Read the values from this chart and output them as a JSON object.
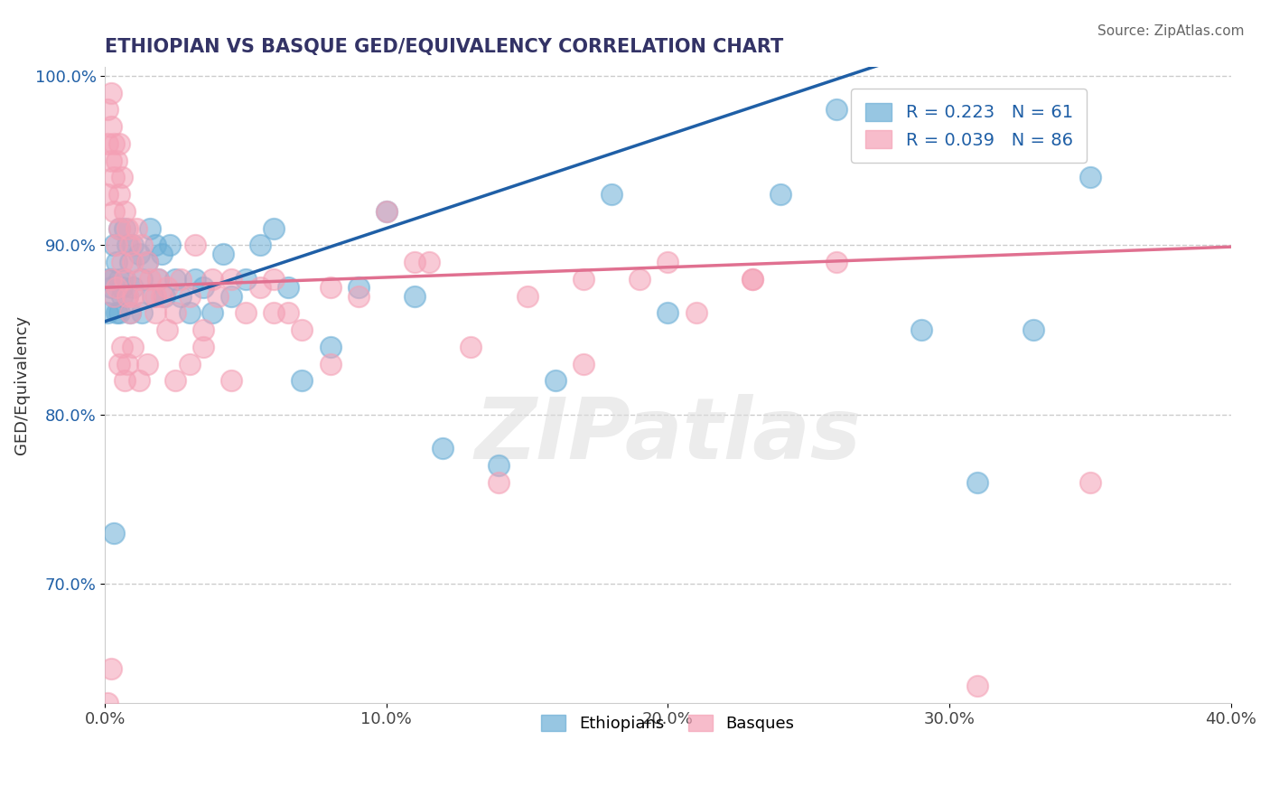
{
  "title": "ETHIOPIAN VS BASQUE GED/EQUIVALENCY CORRELATION CHART",
  "source": "Source: ZipAtlas.com",
  "xlabel": "",
  "ylabel": "GED/Equivalency",
  "x_min": 0.0,
  "x_max": 0.4,
  "y_min": 0.63,
  "y_max": 1.005,
  "y_ticks": [
    0.7,
    0.8,
    0.9,
    1.0
  ],
  "y_tick_labels": [
    "70.0%",
    "80.0%",
    "90.0%",
    "100.0%"
  ],
  "x_ticks": [
    0.0,
    0.1,
    0.2,
    0.3,
    0.4
  ],
  "x_tick_labels": [
    "0.0%",
    "10.0%",
    "20.0%",
    "30.0%",
    "40.0%"
  ],
  "legend_entries": [
    {
      "label": "R = 0.223   N = 61",
      "color": "#aec6e8"
    },
    {
      "label": "R = 0.039   N = 86",
      "color": "#f4b8c8"
    }
  ],
  "legend_bottom": [
    "Ethiopians",
    "Basques"
  ],
  "blue_color": "#6baed6",
  "pink_color": "#f4a0b5",
  "blue_line_color": "#1f5fa6",
  "pink_line_color": "#e07090",
  "watermark": "ZIPatlas",
  "blue_R": 0.223,
  "pink_R": 0.039,
  "blue_N": 61,
  "pink_N": 86,
  "blue_intercept": 0.855,
  "blue_slope": 0.55,
  "pink_intercept": 0.875,
  "pink_slope": 0.06,
  "blue_points_x": [
    0.002,
    0.003,
    0.003,
    0.004,
    0.004,
    0.005,
    0.005,
    0.005,
    0.006,
    0.006,
    0.007,
    0.007,
    0.008,
    0.008,
    0.009,
    0.009,
    0.01,
    0.01,
    0.012,
    0.013,
    0.013,
    0.015,
    0.016,
    0.017,
    0.018,
    0.019,
    0.02,
    0.021,
    0.023,
    0.025,
    0.027,
    0.03,
    0.032,
    0.035,
    0.038,
    0.042,
    0.045,
    0.05,
    0.055,
    0.06,
    0.065,
    0.07,
    0.08,
    0.09,
    0.1,
    0.11,
    0.12,
    0.14,
    0.16,
    0.18,
    0.2,
    0.24,
    0.26,
    0.29,
    0.31,
    0.33,
    0.35,
    0.001,
    0.001,
    0.002,
    0.003
  ],
  "blue_points_y": [
    0.88,
    0.87,
    0.9,
    0.89,
    0.86,
    0.88,
    0.91,
    0.86,
    0.875,
    0.87,
    0.88,
    0.91,
    0.87,
    0.9,
    0.86,
    0.89,
    0.875,
    0.9,
    0.895,
    0.88,
    0.86,
    0.89,
    0.91,
    0.87,
    0.9,
    0.88,
    0.895,
    0.87,
    0.9,
    0.88,
    0.87,
    0.86,
    0.88,
    0.875,
    0.86,
    0.895,
    0.87,
    0.88,
    0.9,
    0.91,
    0.875,
    0.82,
    0.84,
    0.875,
    0.92,
    0.87,
    0.78,
    0.77,
    0.82,
    0.93,
    0.86,
    0.93,
    0.98,
    0.85,
    0.76,
    0.85,
    0.94,
    0.86,
    0.88,
    0.875,
    0.73
  ],
  "pink_points_x": [
    0.001,
    0.001,
    0.001,
    0.002,
    0.002,
    0.002,
    0.003,
    0.003,
    0.003,
    0.004,
    0.004,
    0.005,
    0.005,
    0.005,
    0.006,
    0.006,
    0.007,
    0.007,
    0.008,
    0.008,
    0.009,
    0.009,
    0.01,
    0.01,
    0.011,
    0.012,
    0.013,
    0.014,
    0.015,
    0.016,
    0.018,
    0.019,
    0.02,
    0.022,
    0.025,
    0.027,
    0.03,
    0.032,
    0.035,
    0.038,
    0.04,
    0.045,
    0.05,
    0.055,
    0.06,
    0.065,
    0.07,
    0.08,
    0.09,
    0.1,
    0.115,
    0.13,
    0.15,
    0.17,
    0.19,
    0.21,
    0.23,
    0.002,
    0.003,
    0.004,
    0.005,
    0.006,
    0.007,
    0.008,
    0.01,
    0.012,
    0.015,
    0.018,
    0.022,
    0.025,
    0.03,
    0.035,
    0.045,
    0.06,
    0.08,
    0.11,
    0.14,
    0.17,
    0.2,
    0.23,
    0.26,
    0.31,
    0.35,
    0.001,
    0.002
  ],
  "pink_points_y": [
    0.93,
    0.96,
    0.98,
    0.97,
    0.95,
    0.99,
    0.96,
    0.94,
    0.92,
    0.95,
    0.9,
    0.93,
    0.96,
    0.91,
    0.94,
    0.89,
    0.92,
    0.88,
    0.91,
    0.87,
    0.9,
    0.86,
    0.89,
    0.87,
    0.91,
    0.88,
    0.9,
    0.87,
    0.89,
    0.88,
    0.86,
    0.88,
    0.87,
    0.875,
    0.86,
    0.88,
    0.87,
    0.9,
    0.85,
    0.88,
    0.87,
    0.88,
    0.86,
    0.875,
    0.88,
    0.86,
    0.85,
    0.875,
    0.87,
    0.92,
    0.89,
    0.84,
    0.87,
    0.83,
    0.88,
    0.86,
    0.88,
    0.88,
    0.87,
    0.875,
    0.83,
    0.84,
    0.82,
    0.83,
    0.84,
    0.82,
    0.83,
    0.87,
    0.85,
    0.82,
    0.83,
    0.84,
    0.82,
    0.86,
    0.83,
    0.89,
    0.76,
    0.88,
    0.89,
    0.88,
    0.89,
    0.64,
    0.76,
    0.63,
    0.65
  ]
}
